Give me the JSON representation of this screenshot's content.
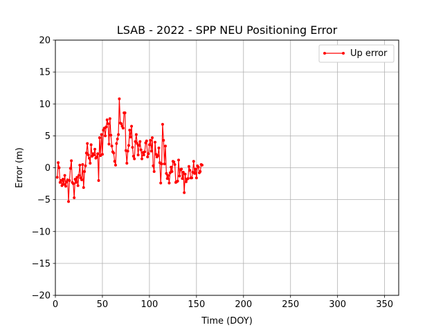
{
  "chart_data": {
    "type": "line",
    "title": "LSAB - 2022 - SPP NEU Positioning Error",
    "xlabel": "Time (DOY)",
    "ylabel": "Error (m)",
    "xlim": [
      0,
      365
    ],
    "ylim": [
      -20,
      20
    ],
    "xticks": [
      0,
      50,
      100,
      150,
      200,
      250,
      300,
      350
    ],
    "yticks": [
      -20,
      -15,
      -10,
      -5,
      0,
      5,
      10,
      15,
      20
    ],
    "grid": true,
    "legend_position": "top-right",
    "series": [
      {
        "name": "Up error",
        "color": "#ff0000",
        "marker": "circle",
        "x": [
          2,
          3,
          4,
          5,
          6,
          7,
          8,
          9,
          10,
          11,
          12,
          13,
          14,
          15,
          16,
          17,
          18,
          19,
          20,
          21,
          22,
          23,
          24,
          25,
          26,
          27,
          28,
          29,
          30,
          31,
          32,
          33,
          34,
          35,
          36,
          37,
          38,
          39,
          40,
          41,
          42,
          43,
          44,
          45,
          46,
          47,
          48,
          49,
          50,
          51,
          52,
          53,
          54,
          55,
          56,
          57,
          58,
          59,
          60,
          61,
          62,
          63,
          64,
          65,
          66,
          67,
          68,
          69,
          70,
          71,
          72,
          73,
          74,
          75,
          76,
          77,
          78,
          79,
          80,
          81,
          82,
          83,
          84,
          85,
          86,
          87,
          88,
          89,
          90,
          91,
          92,
          93,
          94,
          95,
          96,
          97,
          98,
          99,
          100,
          101,
          102,
          103,
          104,
          105,
          106,
          107,
          108,
          109,
          110,
          111,
          112,
          113,
          114,
          115,
          116,
          117,
          118,
          119,
          120,
          121,
          122,
          123,
          124,
          125,
          126,
          127,
          128,
          129,
          130,
          131,
          132,
          133,
          134,
          135,
          136,
          137,
          138,
          139,
          140,
          141,
          142,
          143,
          144,
          145,
          146,
          147,
          148,
          149,
          150,
          151,
          152,
          153,
          154,
          155,
          156
        ],
        "y": [
          -1.5,
          0.8,
          0.0,
          -2.3,
          -2.0,
          -2.8,
          -1.8,
          -2.6,
          -1.2,
          -2.9,
          -2.2,
          -1.9,
          -5.3,
          -2.0,
          -0.1,
          1.1,
          -2.3,
          -2.5,
          -4.7,
          -1.8,
          -2.3,
          -1.5,
          -2.8,
          -1.2,
          0.4,
          -1.6,
          -1.9,
          0.5,
          -3.1,
          -0.6,
          0.3,
          2.3,
          3.8,
          2.0,
          1.5,
          0.7,
          3.6,
          1.8,
          2.2,
          2.0,
          2.9,
          1.5,
          1.7,
          2.2,
          -2.0,
          4.7,
          1.9,
          5.2,
          2.1,
          5.9,
          6.2,
          5.0,
          6.4,
          7.5,
          6.9,
          3.7,
          7.7,
          5.1,
          3.4,
          2.5,
          2.3,
          1.0,
          0.4,
          3.8,
          4.5,
          5.2,
          10.8,
          7.0,
          6.9,
          6.5,
          6.2,
          8.6,
          8.6,
          2.7,
          0.7,
          2.6,
          3.5,
          5.9,
          4.8,
          6.5,
          3.2,
          1.8,
          1.4,
          4.1,
          5.2,
          3.8,
          2.0,
          3.5,
          4.1,
          2.8,
          1.4,
          2.4,
          2.0,
          2.5,
          3.9,
          4.2,
          1.7,
          2.2,
          3.6,
          4.3,
          2.6,
          4.7,
          0.3,
          -0.6,
          4.0,
          2.1,
          1.7,
          1.9,
          3.1,
          0.8,
          -2.4,
          0.6,
          6.8,
          4.3,
          0.6,
          3.4,
          -0.9,
          -1.7,
          -1.2,
          -2.4,
          -0.8,
          0.1,
          -0.6,
          1.0,
          0.9,
          0.5,
          -2.3,
          -2.2,
          -2.1,
          1.2,
          -1.3,
          -0.3,
          -0.2,
          -1.7,
          -0.7,
          -3.9,
          -1.0,
          -2.2,
          -1.8,
          -1.7,
          0.2,
          -0.4,
          -1.6,
          -1.6,
          -0.7,
          1.0,
          -0.9,
          -0.2,
          -1.6,
          0.3,
          0.1,
          -0.8,
          -0.6,
          0.5,
          0.4
        ]
      }
    ]
  }
}
